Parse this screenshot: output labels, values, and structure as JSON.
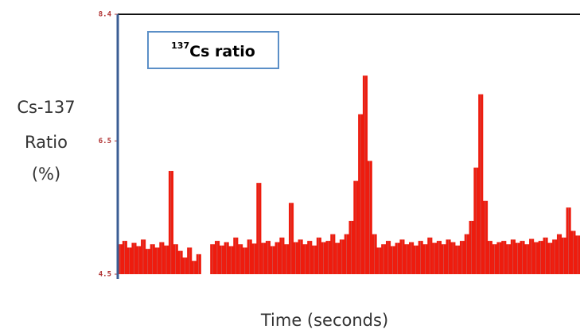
{
  "chart_data": {
    "type": "bar",
    "annotation_sup": "137",
    "annotation": "Cs ratio",
    "y_label": [
      "Cs-137",
      "Ratio",
      "(%)"
    ],
    "x_label": "Time (seconds)",
    "color": "#ee1c0e",
    "ylim": [
      4.5,
      8.4
    ],
    "yticks": [
      4.5,
      6.5,
      8.4
    ],
    "values": [
      4.95,
      5.0,
      4.9,
      4.97,
      4.92,
      5.02,
      4.88,
      4.95,
      4.9,
      4.98,
      4.93,
      6.05,
      4.95,
      4.85,
      4.75,
      4.9,
      4.7,
      4.8,
      null,
      null,
      4.95,
      5.0,
      4.93,
      4.98,
      4.92,
      5.05,
      4.95,
      4.9,
      5.02,
      4.96,
      5.87,
      4.97,
      5.0,
      4.92,
      4.98,
      5.05,
      4.95,
      5.57,
      4.98,
      5.02,
      4.95,
      5.0,
      4.93,
      5.05,
      4.98,
      5.0,
      5.1,
      4.97,
      5.02,
      5.1,
      5.3,
      5.9,
      6.9,
      7.48,
      6.2,
      5.1,
      4.9,
      4.95,
      5.0,
      4.92,
      4.97,
      5.02,
      4.95,
      4.98,
      4.93,
      5.0,
      4.95,
      5.05,
      4.97,
      5.0,
      4.95,
      5.02,
      4.98,
      4.93,
      5.0,
      5.1,
      5.3,
      6.1,
      7.2,
      5.6,
      5.0,
      4.95,
      4.98,
      5.0,
      4.95,
      5.02,
      4.97,
      5.0,
      4.95,
      5.03,
      4.98,
      5.0,
      5.05,
      4.97,
      5.02,
      5.1,
      5.05,
      5.5,
      5.15,
      5.08
    ]
  }
}
